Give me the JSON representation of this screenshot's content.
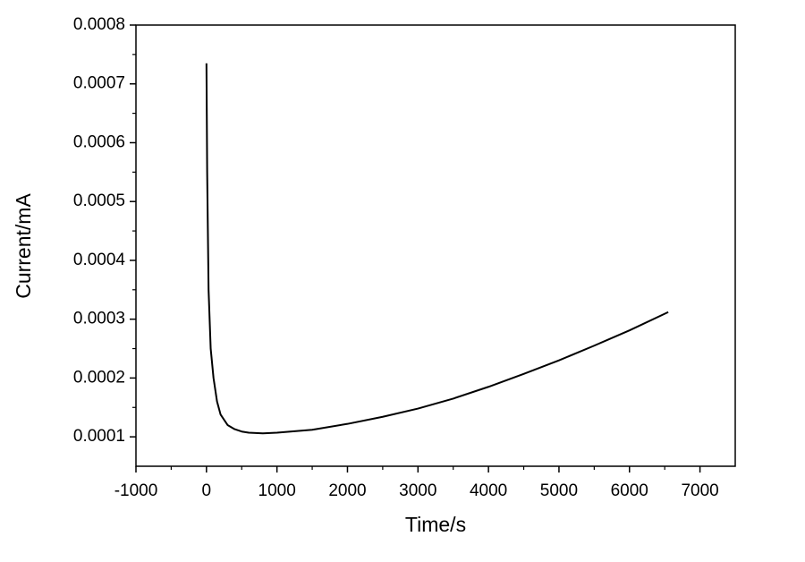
{
  "chart_data": {
    "type": "line",
    "x_label": "Time/s",
    "y_label": "Current/mA",
    "x": [
      0,
      10,
      30,
      60,
      100,
      150,
      200,
      300,
      400,
      500,
      600,
      800,
      1000,
      1500,
      2000,
      2500,
      3000,
      3500,
      4000,
      4500,
      5000,
      5500,
      6000,
      6550
    ],
    "series": [
      {
        "color": "#000000",
        "values": [
          0.000735,
          0.00055,
          0.00035,
          0.00025,
          0.0002,
          0.00016,
          0.000138,
          0.00012,
          0.000113,
          0.000109,
          0.000107,
          0.000106,
          0.000107,
          0.000112,
          0.000122,
          0.000134,
          0.000148,
          0.000165,
          0.000185,
          0.000207,
          0.00023,
          0.000255,
          0.000281,
          0.000312
        ]
      }
    ],
    "xlim": [
      -1000,
      7500
    ],
    "xticks": [
      -1000,
      0,
      1000,
      2000,
      3000,
      4000,
      5000,
      6000,
      7000
    ],
    "ylim": [
      5e-05,
      0.0008
    ],
    "yticks": [
      0.0001,
      0.0002,
      0.0003,
      0.0004,
      0.0005,
      0.0006,
      0.0007,
      0.0008
    ],
    "grid": false
  }
}
